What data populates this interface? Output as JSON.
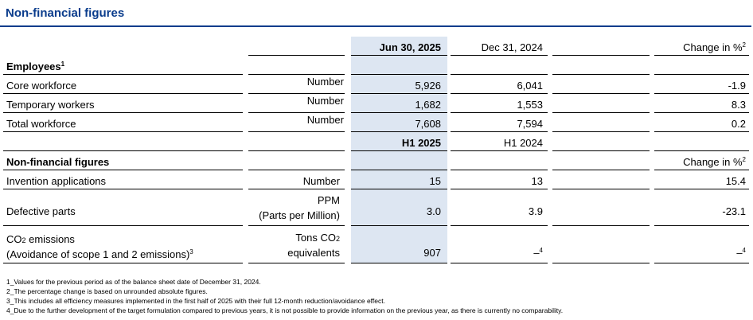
{
  "title": "Non-financial figures",
  "header": {
    "col1": "Jun 30, 2025",
    "col2": "Dec 31, 2024",
    "col3": "Change in %",
    "col3_sup": "2"
  },
  "employees": {
    "heading": "Employees",
    "heading_sup": "1",
    "rows": [
      {
        "label": "Core workforce",
        "unit": "Number",
        "v1": "5,926",
        "v2": "6,041",
        "change": "-1.9"
      },
      {
        "label": "Temporary workers",
        "unit": "Number",
        "v1": "1,682",
        "v2": "1,553",
        "change": "8.3"
      },
      {
        "label": "Total workforce",
        "unit": "Number",
        "v1": "7,608",
        "v2": "7,594",
        "change": "0.2"
      }
    ]
  },
  "header2": {
    "col1": "H1 2025",
    "col2": "H1 2024"
  },
  "nonfin": {
    "heading": "Non-financial figures",
    "change_header": "Change in %",
    "change_sup": "2",
    "invention": {
      "label": "Invention applications",
      "unit": "Number",
      "v1": "15",
      "v2": "13",
      "change": "15.4"
    },
    "defective": {
      "label": "Defective parts",
      "unit_line1": "PPM",
      "unit_line2": "(Parts per Million)",
      "v1": "3.0",
      "v2": "3.9",
      "change": "-23.1"
    },
    "co2": {
      "label_line1_pre": "CO",
      "label_line1_sub": "2",
      "label_line1_post": " emissions",
      "label_line2": "(Avoidance of scope 1 and 2 emissions)",
      "label_line2_sup": "3",
      "unit_line1_pre": "Tons CO",
      "unit_line1_sub": "2",
      "unit_line2": "equivalents",
      "v1": "907",
      "v2": "–",
      "v2_sup": "4",
      "change": "–",
      "change_sup": "4"
    }
  },
  "footnotes": [
    "1_Values for the previous period as of the balance sheet date of December 31, 2024.",
    "2_The percentage change is based on unrounded absolute figures.",
    "3_This includes all efficiency measures implemented in the first half of 2025 with their full 12-month reduction/avoidance effect.",
    "4_Due to the further development of the target formulation compared to previous years, it is not possible to provide information on the previous year, as there is currently no comparability."
  ]
}
